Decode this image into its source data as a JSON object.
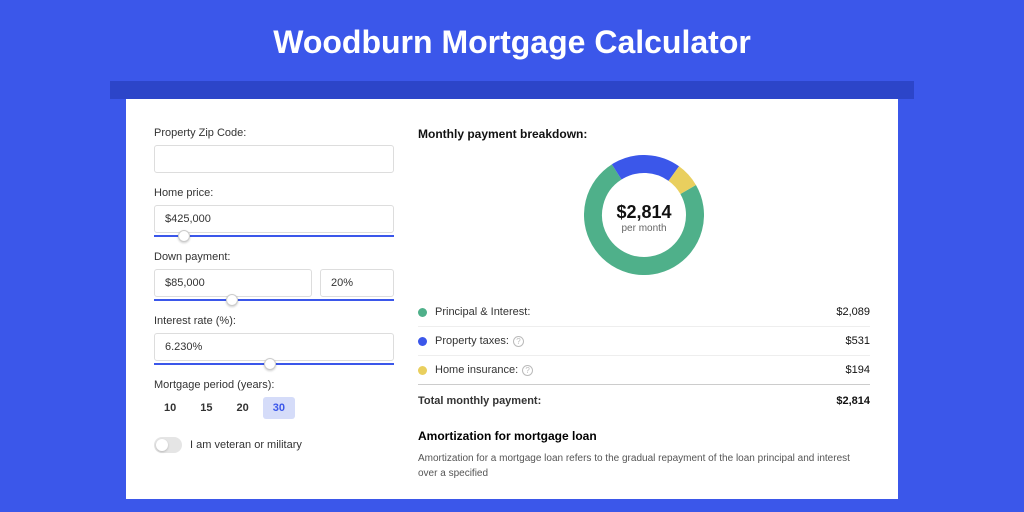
{
  "page": {
    "title": "Woodburn Mortgage Calculator",
    "bg_color": "#3b57ea",
    "accent_bar_color": "#2c45c9"
  },
  "form": {
    "zip": {
      "label": "Property Zip Code:",
      "value": ""
    },
    "home_price": {
      "label": "Home price:",
      "value": "$425,000",
      "slider_pct": 10
    },
    "down_payment": {
      "label": "Down payment:",
      "value": "$85,000",
      "pct_value": "20%",
      "slider_pct": 30
    },
    "interest_rate": {
      "label": "Interest rate (%):",
      "value": "6.230%",
      "slider_pct": 46
    },
    "mortgage_period": {
      "label": "Mortgage period (years):",
      "options": [
        "10",
        "15",
        "20",
        "30"
      ],
      "selected": "30"
    },
    "veteran": {
      "label": "I am veteran or military",
      "checked": false
    }
  },
  "breakdown": {
    "title": "Monthly payment breakdown:",
    "donut": {
      "center_amount": "$2,814",
      "center_sub": "per month",
      "size": 120,
      "stroke_width": 18,
      "segments": [
        {
          "key": "principal_interest",
          "pct": 74.2,
          "color": "#4fb08a"
        },
        {
          "key": "property_taxes",
          "pct": 18.9,
          "color": "#3b57ea"
        },
        {
          "key": "home_insurance",
          "pct": 6.9,
          "color": "#e9cf5e"
        }
      ]
    },
    "items": [
      {
        "label": "Principal & Interest:",
        "value": "$2,089",
        "color": "#4fb08a",
        "info": false
      },
      {
        "label": "Property taxes:",
        "value": "$531",
        "color": "#3b57ea",
        "info": true
      },
      {
        "label": "Home insurance:",
        "value": "$194",
        "color": "#e9cf5e",
        "info": true
      }
    ],
    "total": {
      "label": "Total monthly payment:",
      "value": "$2,814"
    }
  },
  "amortization": {
    "title": "Amortization for mortgage loan",
    "text": "Amortization for a mortgage loan refers to the gradual repayment of the loan principal and interest over a specified"
  }
}
